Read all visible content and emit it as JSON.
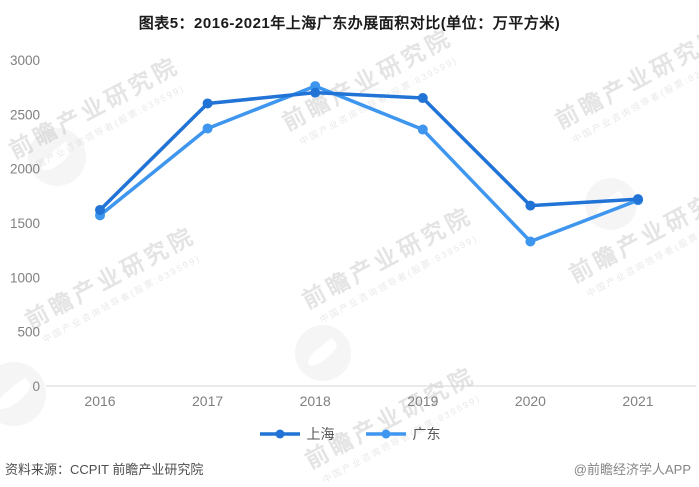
{
  "title": "图表5：2016-2021年上海广东办展面积对比(单位：万平方米)",
  "chart_data": {
    "type": "line",
    "categories": [
      "2016",
      "2017",
      "2018",
      "2019",
      "2020",
      "2021"
    ],
    "series": [
      {
        "name": "上海",
        "color": "#2173d6",
        "values": [
          1620,
          2600,
          2700,
          2650,
          1660,
          1720
        ]
      },
      {
        "name": "广东",
        "color": "#3e96ef",
        "values": [
          1570,
          2370,
          2760,
          2360,
          1330,
          1710
        ]
      }
    ],
    "title": "图表5：2016-2021年上海广东办展面积对比(单位：万平方米)",
    "xlabel": "",
    "ylabel": "",
    "ylim": [
      0,
      3000
    ],
    "ytick_step": 500,
    "grid": false,
    "legend_position": "bottom",
    "axis_color": "#d4d4d4",
    "tick_color": "#808080"
  },
  "legend": {
    "items": [
      {
        "label": "上海"
      },
      {
        "label": "广东"
      }
    ]
  },
  "footer": {
    "source": "资料来源：CCPIT 前瞻产业研究院",
    "credit": "@前瞻经济学人APP"
  },
  "watermark": {
    "text": "前瞻产业研究院",
    "subtext": "中国产业咨询领导者(股票:839599)"
  }
}
